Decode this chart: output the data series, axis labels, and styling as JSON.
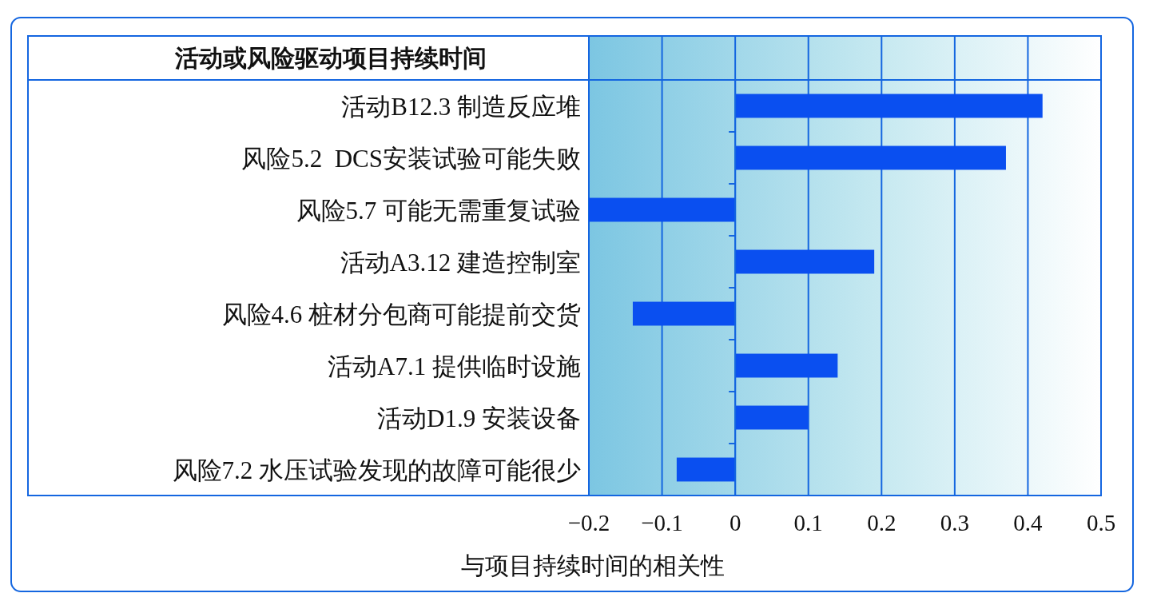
{
  "chart_data": {
    "type": "bar",
    "orientation": "horizontal",
    "title": "活动或风险驱动项目持续时间",
    "categories": [
      "活动B12.3 制造反应堆",
      "风险5.2  DCS安装试验可能失败",
      "风险5.7 可能无需重复试验",
      "活动A3.12 建造控制室",
      "风险4.6 桩材分包商可能提前交货",
      "活动A7.1 提供临时设施",
      "活动D1.9 安装设备",
      "风险7.2 水压试验发现的故障可能很少"
    ],
    "values": [
      0.42,
      0.37,
      -0.2,
      0.19,
      -0.14,
      0.14,
      0.1,
      -0.08
    ],
    "color": "#0a4ff0",
    "xlabel": "与项目持续时间的相关性",
    "xlim": [
      -0.2,
      0.5
    ],
    "xticks": [
      {
        "value": -0.2,
        "label": "−0.2"
      },
      {
        "value": -0.1,
        "label": "−0.1"
      },
      0,
      0.1,
      0.2,
      0.3,
      0.4,
      0.5
    ],
    "grid": "x"
  }
}
